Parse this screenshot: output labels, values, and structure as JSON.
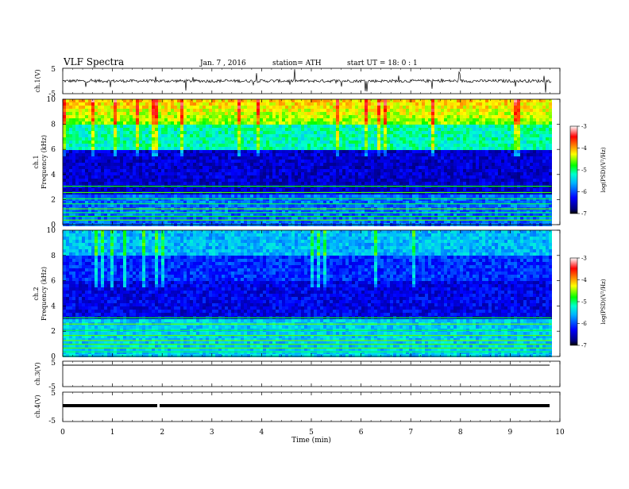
{
  "header": {
    "title": "VLF Spectra",
    "date": "Jan.  7  , 2016",
    "station": "station= ATH",
    "start": "start  UT  =   18: 0  : 1"
  },
  "chart_data": [
    {
      "type": "line",
      "id": "ch1-waveform",
      "ylabel": "ch.1(V)",
      "ylim": [
        -5,
        5
      ],
      "yticks": [
        "5",
        "-5"
      ],
      "baseline": 0
    },
    {
      "type": "heatmap",
      "id": "ch1-spectrogram",
      "ylabel_top": "ch.1",
      "ylabel": "Frequency  (kHz)",
      "ylim": [
        0,
        10
      ],
      "yticks": [
        "0",
        "2",
        "4",
        "6",
        "8",
        "10"
      ],
      "colorbar": {
        "label": "log(PSD)(V²/Hz)",
        "range": [
          -7,
          -3
        ],
        "ticks": [
          "-3",
          "-4",
          "-5",
          "-6",
          "-7"
        ]
      }
    },
    {
      "type": "heatmap",
      "id": "ch2-spectrogram",
      "ylabel_top": "ch.2",
      "ylabel": "Frequency  (kHz)",
      "ylim": [
        0,
        10
      ],
      "yticks": [
        "0",
        "2",
        "4",
        "6",
        "8",
        "10"
      ],
      "colorbar": {
        "label": "log(PSD)(V²/Hz)",
        "range": [
          -7,
          -3
        ],
        "ticks": [
          "-3",
          "-4",
          "-5",
          "-6",
          "-7"
        ]
      }
    },
    {
      "type": "line",
      "id": "ch3-waveform",
      "ylabel": "ch.3(V)",
      "ylim": [
        -5,
        5
      ],
      "yticks": [
        "5",
        "-5"
      ],
      "baseline": 5
    },
    {
      "type": "line",
      "id": "ch4-waveform",
      "ylabel": "ch.4(V)",
      "ylim": [
        -5,
        5
      ],
      "yticks": [
        "5",
        "-5"
      ],
      "baseline": 0
    }
  ],
  "xaxis": {
    "xlabel": "Time  (min)",
    "xlim": [
      0,
      10
    ],
    "xticks": [
      "0",
      "1",
      "2",
      "3",
      "4",
      "5",
      "6",
      "7",
      "8",
      "9",
      "10"
    ],
    "data_end": 9.83
  }
}
